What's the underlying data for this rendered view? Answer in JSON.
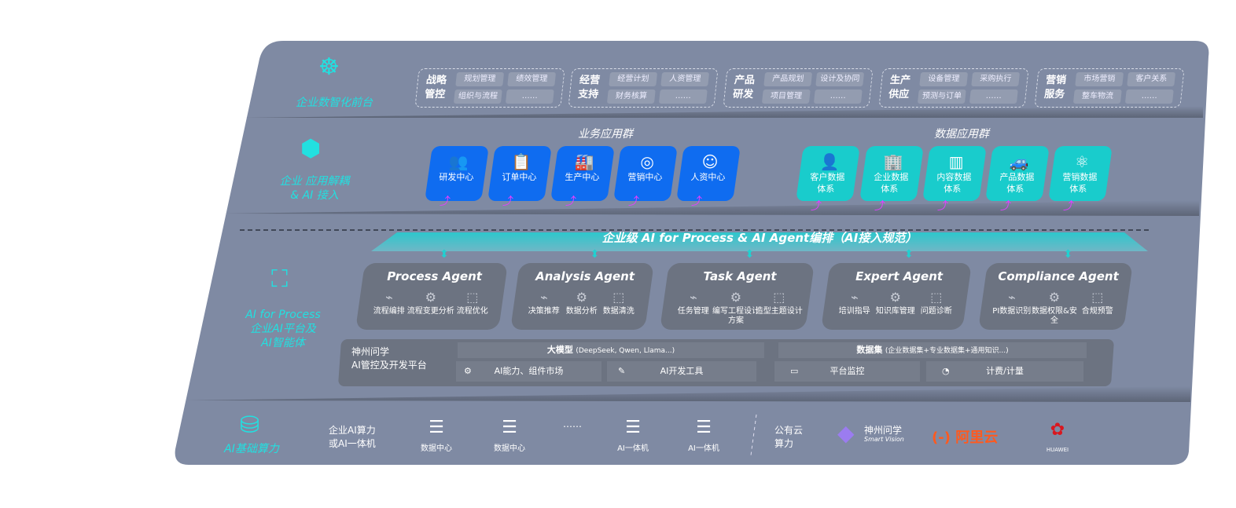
{
  "layers": {
    "front": {
      "label": "企业数智化前台",
      "icon": "brain-icon"
    },
    "apps": {
      "label_line1": "企业 应用解耦",
      "label_line2": "& AI 接入",
      "icon": "molecule-icon"
    },
    "ai": {
      "label_line1": "AI for Process",
      "label_line2": "企业AI平台及",
      "label_line3": "AI智能体",
      "icon": "person-scan-icon"
    },
    "infra": {
      "label": "AI基础算力",
      "icon": "database-icon"
    }
  },
  "front_groups": [
    {
      "title1": "战略",
      "title2": "管控",
      "chips": [
        "规划管理",
        "绩效管理",
        "组织与流程",
        "……"
      ]
    },
    {
      "title1": "经营",
      "title2": "支持",
      "chips": [
        "经营计划",
        "人资管理",
        "财务核算",
        "……"
      ]
    },
    {
      "title1": "产品",
      "title2": "研发",
      "chips": [
        "产品规划",
        "设计及协同",
        "项目管理",
        "……"
      ]
    },
    {
      "title1": "生产",
      "title2": "供应",
      "chips": [
        "设备管理",
        "采购执行",
        "预测与订单",
        "……"
      ]
    },
    {
      "title1": "营销",
      "title2": "服务",
      "chips": [
        "市场营销",
        "客户关系",
        "整车物流",
        "……"
      ]
    }
  ],
  "business_apps": {
    "title": "业务应用群",
    "items": [
      {
        "label": "研发中心",
        "icon": "users-icon"
      },
      {
        "label": "订单中心",
        "icon": "clipboard-icon"
      },
      {
        "label": "生产中心",
        "icon": "factory-icon"
      },
      {
        "label": "营销中心",
        "icon": "target-icon"
      },
      {
        "label": "人资中心",
        "icon": "person-icon"
      }
    ]
  },
  "data_apps": {
    "title": "数据应用群",
    "items": [
      {
        "label1": "客户数据",
        "label2": "体系",
        "icon": "user-icon"
      },
      {
        "label1": "企业数据",
        "label2": "体系",
        "icon": "building-icon"
      },
      {
        "label1": "内容数据",
        "label2": "体系",
        "icon": "books-icon"
      },
      {
        "label1": "产品数据",
        "label2": "体系",
        "icon": "car-icon"
      },
      {
        "label1": "营销数据",
        "label2": "体系",
        "icon": "atom-icon"
      }
    ]
  },
  "banner": "企业级 AI for Process & AI Agent编排（AI接入规范）",
  "agents": [
    {
      "name": "Process Agent",
      "items": [
        "流程编排",
        "流程变更分析",
        "流程优化"
      ]
    },
    {
      "name": "Analysis Agent",
      "items": [
        "决策推荐",
        "数据分析",
        "数据清洗"
      ]
    },
    {
      "name": "Task Agent",
      "items": [
        "任务管理",
        "编写工程设计方案",
        "造型主题设计"
      ]
    },
    {
      "name": "Expert Agent",
      "items": [
        "培训指导",
        "知识库管理",
        "问题诊断"
      ]
    },
    {
      "name": "Compliance Agent",
      "items": [
        "PI数据识别",
        "数据权限&安全",
        "合规预警"
      ]
    }
  ],
  "platform": {
    "title1": "神州问学",
    "title2": "AI管控及开发平台",
    "model": "大模型",
    "model_note": "(DeepSeek, Qwen, Llama...)",
    "dataset": "数据集",
    "dataset_note": "(企业数据集+专业数据集+通用知识...)",
    "tools": [
      "AI能力、组件市场",
      "AI开发工具",
      "平台监控",
      "计费/计量"
    ]
  },
  "infra": {
    "onprem1": "企业AI算力",
    "onprem2": "或AI一体机",
    "servers": [
      "数据中心",
      "数据中心",
      "AI一体机",
      "AI一体机"
    ],
    "ellipsis": "……",
    "cloud1": "公有云",
    "cloud2": "算力",
    "logos": {
      "smartvision": "神州问学",
      "smartvision_sub": "Smart Vision",
      "aliyun": "阿里云",
      "huawei": "HUAWEI"
    }
  },
  "colors": {
    "panel": "#7f8aa3",
    "business": "#0f6cf0",
    "data": "#19cccc",
    "accent": "#22e0e0",
    "arrow": "#e040ff",
    "aliyun": "#ff5a1f",
    "huawei": "#d9171f"
  }
}
